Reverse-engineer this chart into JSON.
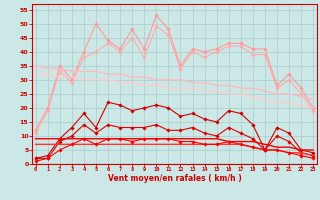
{
  "x": [
    0,
    1,
    2,
    3,
    4,
    5,
    6,
    7,
    8,
    9,
    10,
    11,
    12,
    13,
    14,
    15,
    16,
    17,
    18,
    19,
    20,
    21,
    22,
    23
  ],
  "series": [
    {
      "name": "rafales_high",
      "color": "#ff9999",
      "linewidth": 0.8,
      "marker": "D",
      "markersize": 1.8,
      "values": [
        12,
        20,
        35,
        30,
        40,
        50,
        44,
        41,
        48,
        41,
        53,
        48,
        35,
        41,
        40,
        41,
        43,
        43,
        41,
        41,
        28,
        32,
        27,
        20
      ]
    },
    {
      "name": "rafales_mid",
      "color": "#ffaaaa",
      "linewidth": 0.8,
      "marker": "D",
      "markersize": 1.8,
      "values": [
        11,
        19,
        33,
        29,
        38,
        40,
        43,
        40,
        45,
        38,
        49,
        46,
        34,
        40,
        38,
        40,
        42,
        42,
        39,
        39,
        27,
        30,
        25,
        19
      ]
    },
    {
      "name": "trend_rafales1",
      "color": "#ffbbbb",
      "linewidth": 1.0,
      "marker": null,
      "markersize": 0,
      "values": [
        35,
        34,
        34,
        33,
        33,
        33,
        32,
        32,
        31,
        31,
        30,
        30,
        30,
        29,
        29,
        28,
        28,
        27,
        27,
        26,
        25,
        25,
        24,
        23
      ]
    },
    {
      "name": "trend_rafales2",
      "color": "#ffcccc",
      "linewidth": 1.0,
      "marker": null,
      "markersize": 0,
      "values": [
        32,
        32,
        31,
        31,
        30,
        30,
        30,
        29,
        29,
        28,
        28,
        27,
        27,
        27,
        26,
        26,
        25,
        25,
        24,
        23,
        22,
        22,
        21,
        20
      ]
    },
    {
      "name": "vent_high",
      "color": "#cc0000",
      "linewidth": 0.8,
      "marker": "D",
      "markersize": 1.8,
      "values": [
        2,
        3,
        9,
        13,
        18,
        13,
        22,
        21,
        19,
        20,
        21,
        20,
        17,
        18,
        16,
        15,
        19,
        18,
        14,
        5,
        13,
        11,
        5,
        4
      ]
    },
    {
      "name": "vent_mid",
      "color": "#dd0000",
      "linewidth": 0.8,
      "marker": "D",
      "markersize": 1.8,
      "values": [
        2,
        2,
        8,
        10,
        14,
        11,
        14,
        13,
        13,
        13,
        14,
        12,
        12,
        13,
        11,
        10,
        13,
        11,
        9,
        5,
        10,
        8,
        4,
        3
      ]
    },
    {
      "name": "trend_vent1",
      "color": "#ee0000",
      "linewidth": 1.0,
      "marker": null,
      "markersize": 0,
      "values": [
        9,
        9,
        9,
        9,
        9,
        9,
        9,
        9,
        9,
        9,
        9,
        9,
        9,
        9,
        9,
        9,
        8,
        8,
        8,
        7,
        6,
        6,
        5,
        5
      ]
    },
    {
      "name": "trend_vent2",
      "color": "#ff3333",
      "linewidth": 1.0,
      "marker": null,
      "markersize": 0,
      "values": [
        7,
        7,
        7,
        7,
        7,
        7,
        7,
        7,
        7,
        7,
        7,
        7,
        7,
        7,
        7,
        7,
        7,
        7,
        6,
        5,
        5,
        4,
        4,
        3
      ]
    },
    {
      "name": "vent_low",
      "color": "#ff0000",
      "linewidth": 0.8,
      "marker": "D",
      "markersize": 1.8,
      "values": [
        1,
        2,
        5,
        7,
        9,
        7,
        9,
        9,
        8,
        9,
        9,
        9,
        8,
        8,
        7,
        7,
        8,
        7,
        6,
        5,
        5,
        4,
        3,
        2
      ]
    }
  ],
  "xlabel": "Vent moyen/en rafales ( km/h )",
  "xlim": [
    0,
    23
  ],
  "ylim": [
    0,
    57
  ],
  "yticks": [
    0,
    5,
    10,
    15,
    20,
    25,
    30,
    35,
    40,
    45,
    50,
    55
  ],
  "xticks": [
    0,
    1,
    2,
    3,
    4,
    5,
    6,
    7,
    8,
    9,
    10,
    11,
    12,
    13,
    14,
    15,
    16,
    17,
    18,
    19,
    20,
    21,
    22,
    23
  ],
  "background_color": "#cce8e6",
  "grid_color": "#aacccc",
  "axis_color": "#cc0000",
  "tick_color": "#cc0000",
  "label_color": "#cc0000"
}
